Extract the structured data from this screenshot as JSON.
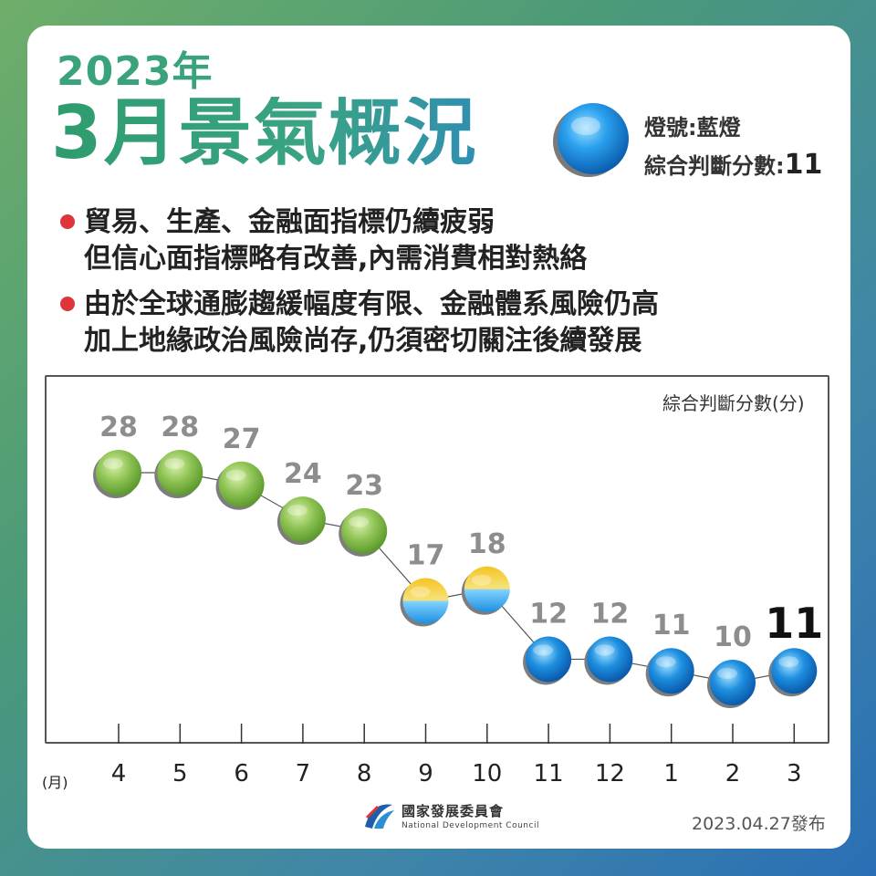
{
  "header": {
    "year": "2023年",
    "title": "3月景氣概況",
    "light_label": "燈號:藍燈",
    "score_label": "綜合判斷分數:",
    "score_value": "11",
    "light_color": "#1e8fe0"
  },
  "bullets": [
    {
      "lines": [
        "貿易、生產、金融面指標仍續疲弱",
        "但信心面指標略有改善,內需消費相對熱絡"
      ]
    },
    {
      "lines": [
        "由於全球通膨趨緩幅度有限、金融體系風險仍高",
        "加上地緣政治風險尚存,仍須密切關注後續發展"
      ]
    }
  ],
  "chart_data": {
    "type": "line",
    "ylabel": "綜合判斷分數(分)",
    "x_unit": "(月)",
    "categories": [
      "4",
      "5",
      "6",
      "7",
      "8",
      "9",
      "10",
      "11",
      "12",
      "1",
      "2",
      "3"
    ],
    "values": [
      28,
      28,
      27,
      24,
      23,
      17,
      18,
      12,
      12,
      11,
      10,
      11
    ],
    "light_colors": [
      "green",
      "green",
      "green",
      "green",
      "green",
      "yellow-blue",
      "yellow-blue",
      "blue",
      "blue",
      "blue",
      "blue",
      "blue"
    ],
    "highlight_last": true,
    "grid": false
  },
  "footer": {
    "org_name": "國家發展委員會",
    "org_name_en": "National Development Council",
    "release": "2023.04.27發布"
  },
  "colors": {
    "green": "#8cc152",
    "blue": "#1e8fe0",
    "yellow": "#f5c423",
    "bullet": "#e0343b"
  }
}
